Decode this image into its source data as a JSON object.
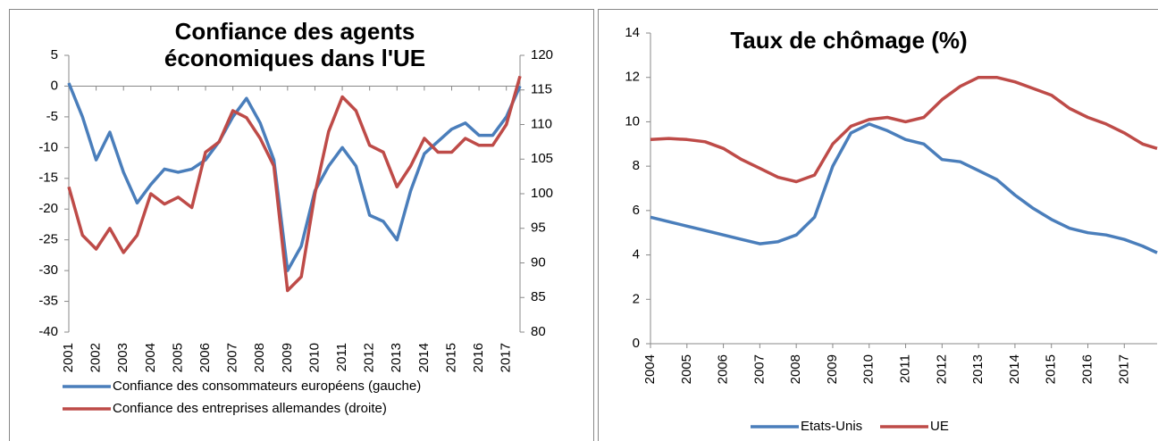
{
  "chart_data": [
    {
      "type": "line",
      "title": "Confiance des agents économiques dans l'UE",
      "x": [
        2001,
        2001.5,
        2002,
        2002.5,
        2003,
        2003.5,
        2004,
        2004.5,
        2005,
        2005.5,
        2006,
        2006.5,
        2007,
        2007.5,
        2008,
        2008.5,
        2009,
        2009.5,
        2010,
        2010.5,
        2011,
        2011.5,
        2012,
        2012.5,
        2013,
        2013.5,
        2014,
        2014.5,
        2015,
        2015.5,
        2016,
        2016.5,
        2017,
        2017.5
      ],
      "series": [
        {
          "name": "Confiance des consommateurs européens (gauche)",
          "color": "#4a7ebb",
          "values": [
            0.5,
            -5,
            -12,
            -7.5,
            -14,
            -19,
            -16,
            -13.5,
            -14,
            -13.5,
            -12,
            -9,
            -5,
            -2,
            -6,
            -12,
            -30,
            -26,
            -17,
            -13,
            -10,
            -13,
            -21,
            -22,
            -25,
            -17,
            -11,
            -9,
            -7,
            -6,
            -8,
            -8,
            -5,
            0
          ]
        },
        {
          "name": "Confiance des entreprises allemandes (droite)",
          "color": "#be4b48",
          "axis": "y2",
          "values": [
            101,
            94,
            92,
            95,
            91.5,
            94,
            100,
            98.5,
            99.5,
            98,
            106,
            107.5,
            112,
            111,
            108,
            104,
            86,
            88,
            100,
            109,
            114,
            112,
            107,
            106,
            101,
            104,
            108,
            106,
            106,
            108,
            107,
            107,
            110,
            117
          ]
        }
      ],
      "xlim": [
        2001,
        2017.5
      ],
      "xticks": [
        2001,
        2002,
        2003,
        2004,
        2005,
        2006,
        2007,
        2008,
        2009,
        2010,
        2011,
        2012,
        2013,
        2014,
        2015,
        2016,
        2017
      ],
      "ylim": [
        -40,
        5
      ],
      "yticks": [
        -40,
        -35,
        -30,
        -25,
        -20,
        -15,
        -10,
        -5,
        0,
        5
      ],
      "y2lim": [
        80,
        120
      ],
      "y2ticks": [
        80,
        85,
        90,
        95,
        100,
        105,
        110,
        115,
        120
      ],
      "grid": false,
      "legend": "bottom"
    },
    {
      "type": "line",
      "title": "Taux de chômage (%)",
      "x": [
        2004,
        2004.5,
        2005,
        2005.5,
        2006,
        2006.5,
        2007,
        2007.5,
        2008,
        2008.5,
        2009,
        2009.5,
        2010,
        2010.5,
        2011,
        2011.5,
        2012,
        2012.5,
        2013,
        2013.5,
        2014,
        2014.5,
        2015,
        2015.5,
        2016,
        2016.5,
        2017,
        2017.5,
        2017.9
      ],
      "series": [
        {
          "name": "Etats-Unis",
          "color": "#4a7ebb",
          "values": [
            5.7,
            5.5,
            5.3,
            5.1,
            4.9,
            4.7,
            4.5,
            4.6,
            4.9,
            5.7,
            8.0,
            9.5,
            9.9,
            9.6,
            9.2,
            9.0,
            8.3,
            8.2,
            7.8,
            7.4,
            6.7,
            6.1,
            5.6,
            5.2,
            5.0,
            4.9,
            4.7,
            4.4,
            4.1
          ]
        },
        {
          "name": "UE",
          "color": "#be4b48",
          "values": [
            9.2,
            9.25,
            9.2,
            9.1,
            8.8,
            8.3,
            7.9,
            7.5,
            7.3,
            7.6,
            9.0,
            9.8,
            10.1,
            10.2,
            10.0,
            10.2,
            11.0,
            11.6,
            12.0,
            12.0,
            11.8,
            11.5,
            11.2,
            10.6,
            10.2,
            9.9,
            9.5,
            9.0,
            8.8
          ]
        }
      ],
      "xlim": [
        2004,
        2017.9
      ],
      "xticks": [
        2004,
        2005,
        2006,
        2007,
        2008,
        2009,
        2010,
        2011,
        2012,
        2013,
        2014,
        2015,
        2016,
        2017
      ],
      "ylim": [
        0,
        14
      ],
      "yticks": [
        0,
        2,
        4,
        6,
        8,
        10,
        12,
        14
      ],
      "grid": false,
      "legend": "bottom"
    }
  ]
}
